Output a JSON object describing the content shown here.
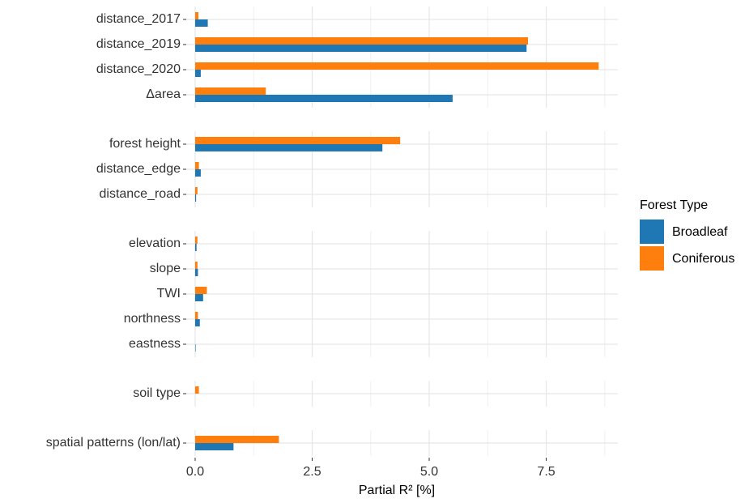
{
  "chart_data": {
    "type": "bar",
    "x_label": "Partial R² [%]",
    "categories": [
      [
        "distance_2017",
        "distance_2019",
        "distance_2020",
        "Δarea"
      ],
      [
        "forest height",
        "distance_edge",
        "distance_road"
      ],
      [
        "elevation",
        "slope",
        "TWI",
        "northness",
        "eastness"
      ],
      [
        "soil type"
      ],
      [
        "spatial patterns (lon/lat)"
      ]
    ],
    "series": [
      {
        "name": "Broadleaf",
        "color": "#1f77b4",
        "values": [
          [
            0.27,
            7.08,
            0.12,
            5.5
          ],
          [
            4.0,
            0.12,
            0.02
          ],
          [
            0.03,
            0.06,
            0.17,
            0.1,
            0.01
          ],
          [
            0
          ],
          [
            0.82
          ]
        ]
      },
      {
        "name": "Coniferous",
        "color": "#ff7f0e",
        "values": [
          [
            0.07,
            7.11,
            8.62,
            1.51
          ],
          [
            4.38,
            0.08,
            0.05
          ],
          [
            0.05,
            0.05,
            0.25,
            0.06,
            0
          ],
          [
            0.08
          ],
          [
            1.79
          ]
        ]
      }
    ],
    "legend_title": "Forest Type",
    "xlim": [
      -0.19,
      9.03
    ],
    "xticks": [
      {
        "value": 0,
        "label": "0.0"
      },
      2.5,
      {
        "value": 5,
        "label": "5.0"
      },
      7.5
    ],
    "xminorticks": [
      1.25,
      3.75,
      6.25,
      8.75
    ],
    "grid": true,
    "legend": "right"
  }
}
